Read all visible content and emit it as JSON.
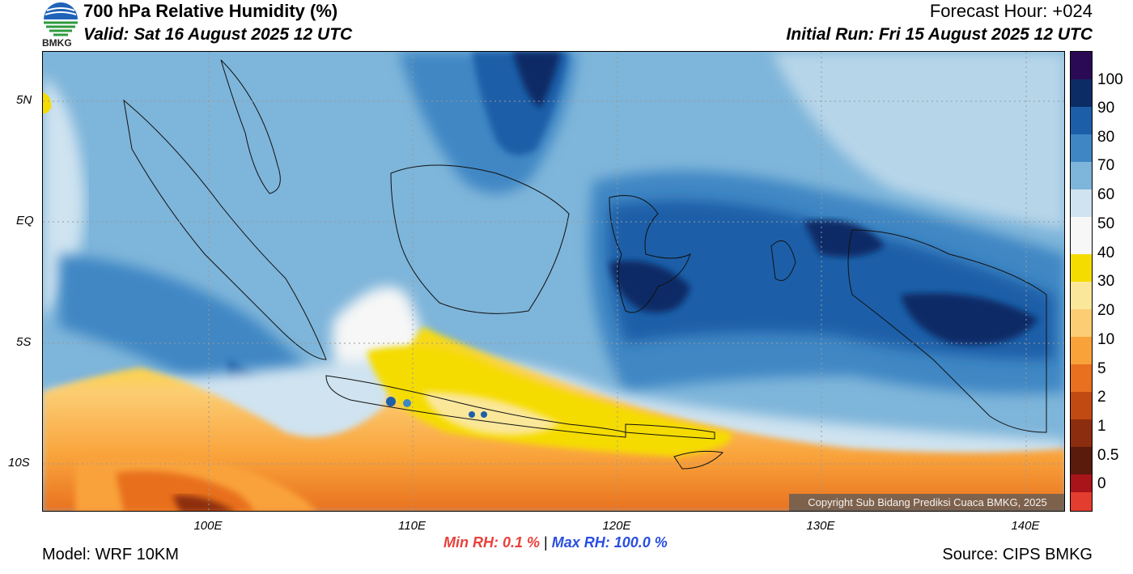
{
  "header": {
    "title": "700 hPa Relative Humidity (%)",
    "valid": "Valid: Sat 16 August 2025 12 UTC",
    "forecast_hour": "Forecast Hour: +024",
    "initial_run": "Initial Run: Fri 15 August 2025 12 UTC"
  },
  "logo": {
    "text": "BMKG"
  },
  "axes": {
    "lat_labels": [
      "5N",
      "EQ",
      "5S",
      "10S"
    ],
    "lon_labels": [
      "100E",
      "110E",
      "120E",
      "130E",
      "140E"
    ]
  },
  "colorbar": {
    "labels": [
      "100",
      "90",
      "80",
      "70",
      "60",
      "50",
      "40",
      "30",
      "20",
      "10",
      "5",
      "2",
      "1",
      "0.5",
      "0"
    ],
    "colors": [
      "#2a0a55",
      "#0c2c66",
      "#1d5ea8",
      "#3f87c4",
      "#7eb5da",
      "#cfe3f0",
      "#f7f7f7",
      "#f5dc00",
      "#fbe79a",
      "#fccd73",
      "#f9a23a",
      "#e8701f",
      "#c14a13",
      "#8c2d0f",
      "#5a1a0c",
      "#a8141a",
      "#e23d2f"
    ]
  },
  "copyright": "Copyright Sub Bidang Prediksi Cuaca BMKG, 2025",
  "stats": {
    "min_rh": "Min RH:   0.1 %",
    "separator": "|",
    "max_rh": "Max RH: 100.0 %"
  },
  "footer": {
    "model": "Model: WRF 10KM",
    "source": "Source: CIPS BMKG"
  }
}
